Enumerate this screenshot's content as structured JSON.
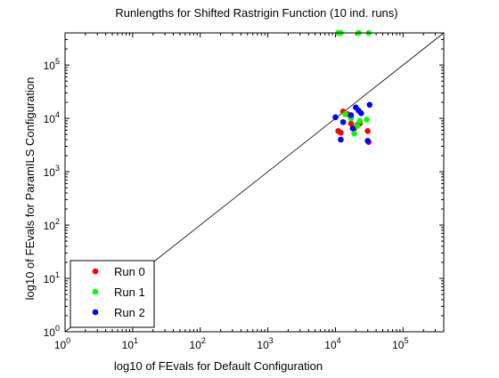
{
  "chart_data": {
    "type": "scatter",
    "title": "Runlengths for Shifted Rastrigin Function (10 ind. runs)",
    "xlabel": "log10 of FEvals for Default Configuration",
    "ylabel": "log10 of FEvals for ParamILS Configuration",
    "xscale": "log",
    "yscale": "log",
    "xlim": [
      1,
      400000
    ],
    "ylim": [
      1,
      400000
    ],
    "x_ticks": [
      {
        "value": 1,
        "base": "10",
        "exp": "0"
      },
      {
        "value": 10,
        "base": "10",
        "exp": "1"
      },
      {
        "value": 100,
        "base": "10",
        "exp": "2"
      },
      {
        "value": 1000,
        "base": "10",
        "exp": "3"
      },
      {
        "value": 10000,
        "base": "10",
        "exp": "4"
      },
      {
        "value": 100000,
        "base": "10",
        "exp": "5"
      }
    ],
    "y_ticks": [
      {
        "value": 1,
        "base": "10",
        "exp": "0"
      },
      {
        "value": 10,
        "base": "10",
        "exp": "1"
      },
      {
        "value": 100,
        "base": "10",
        "exp": "2"
      },
      {
        "value": 1000,
        "base": "10",
        "exp": "3"
      },
      {
        "value": 10000,
        "base": "10",
        "exp": "4"
      },
      {
        "value": 100000,
        "base": "10",
        "exp": "5"
      }
    ],
    "diagonal": true,
    "grid": false,
    "legend_position": "bottom-left",
    "series": [
      {
        "name": "Run 0",
        "color": "#ff0000",
        "points": [
          [
            11000,
            5800
          ],
          [
            12000,
            5400
          ],
          [
            13000,
            13500
          ],
          [
            17000,
            8000
          ],
          [
            19000,
            6500
          ],
          [
            21000,
            7500
          ],
          [
            23000,
            8000
          ],
          [
            30000,
            5800
          ],
          [
            31000,
            3600
          ],
          [
            15000,
            12000
          ]
        ]
      },
      {
        "name": "Run 1",
        "color": "#00ff00",
        "points": [
          [
            11000,
            400000
          ],
          [
            12000,
            400000
          ],
          [
            22000,
            400000
          ],
          [
            31000,
            400000
          ],
          [
            14000,
            12000
          ],
          [
            17000,
            10000
          ],
          [
            19000,
            5200
          ],
          [
            21000,
            7200
          ],
          [
            23000,
            9000
          ],
          [
            29000,
            9500
          ]
        ]
      },
      {
        "name": "Run 2",
        "color": "#0000ff",
        "points": [
          [
            10000,
            10500
          ],
          [
            12000,
            4000
          ],
          [
            13000,
            8500
          ],
          [
            17000,
            11500
          ],
          [
            18000,
            6500
          ],
          [
            20000,
            16000
          ],
          [
            22000,
            14000
          ],
          [
            24000,
            12500
          ],
          [
            30000,
            3800
          ],
          [
            32000,
            18000
          ]
        ]
      }
    ]
  }
}
